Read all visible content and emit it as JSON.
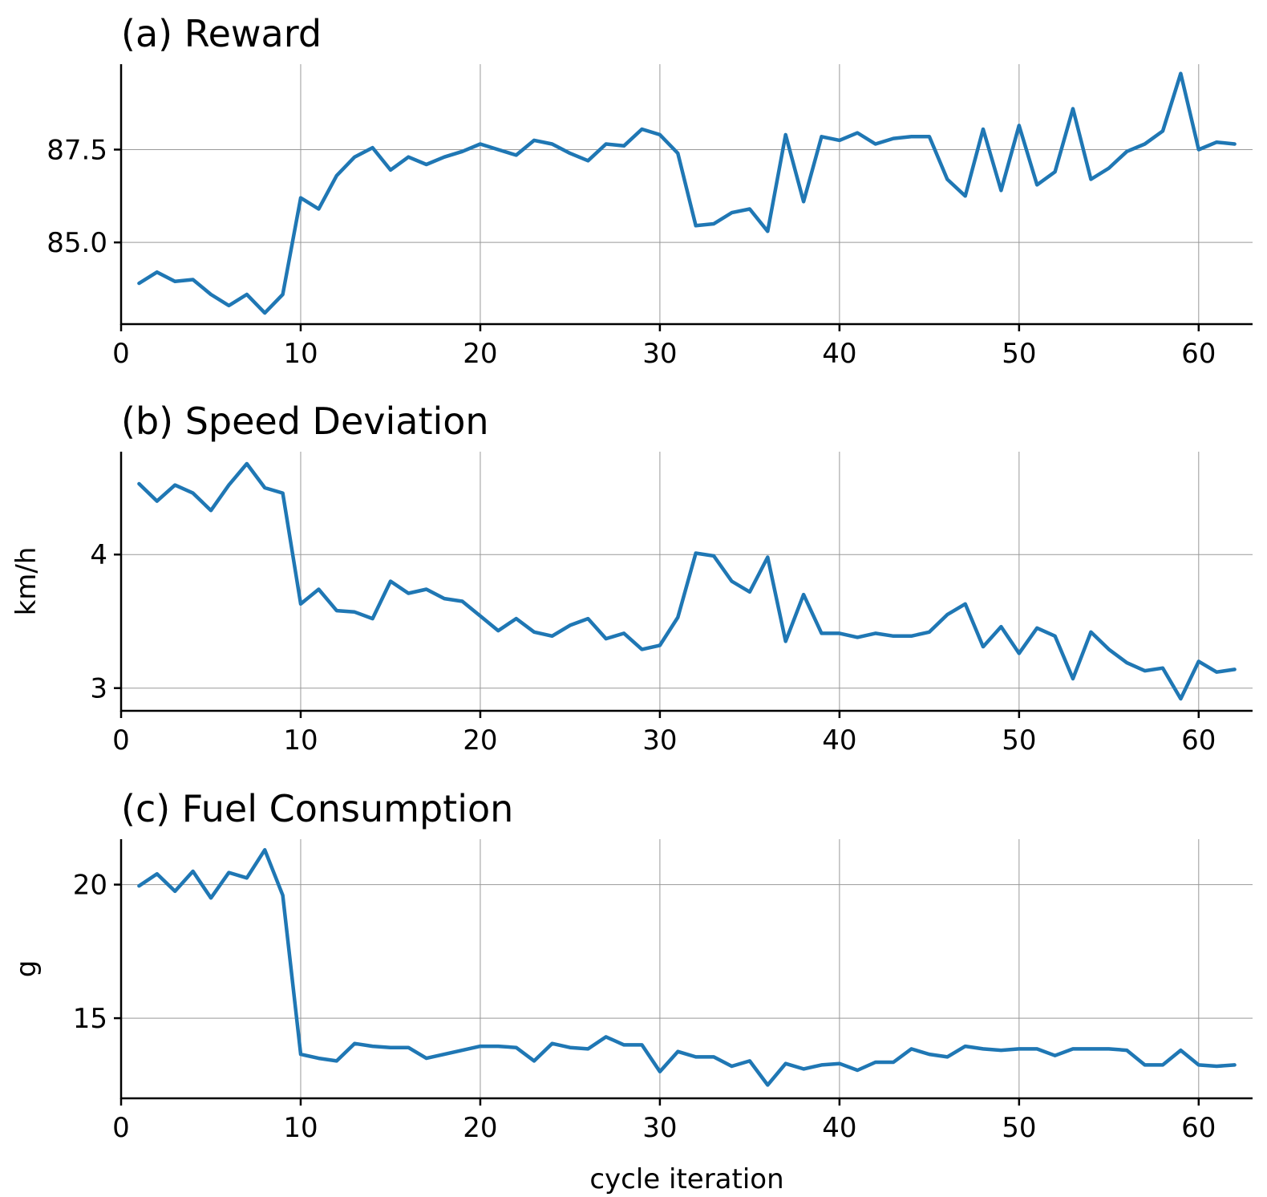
{
  "chart_data": [
    {
      "type": "line",
      "title": "(a) Reward",
      "xlabel": "",
      "ylabel": "",
      "xlim": [
        0,
        63
      ],
      "ylim": [
        82.8,
        89.8
      ],
      "xticks": [
        0,
        10,
        20,
        30,
        40,
        50,
        60
      ],
      "yticks": [
        85.0,
        87.5
      ],
      "ytick_labels": [
        "85.0",
        "87.5"
      ],
      "grid": true,
      "color": "#1f77b4",
      "x": [
        1,
        2,
        3,
        4,
        5,
        6,
        7,
        8,
        9,
        10,
        11,
        12,
        13,
        14,
        15,
        16,
        17,
        18,
        19,
        20,
        21,
        22,
        23,
        24,
        25,
        26,
        27,
        28,
        29,
        30,
        31,
        32,
        33,
        34,
        35,
        36,
        37,
        38,
        39,
        40,
        41,
        42,
        43,
        44,
        45,
        46,
        47,
        48,
        49,
        50,
        51,
        52,
        53,
        54,
        55,
        56,
        57,
        58,
        59,
        60,
        61,
        62
      ],
      "values": [
        83.9,
        84.2,
        83.95,
        84.0,
        83.6,
        83.3,
        83.6,
        83.1,
        83.6,
        86.2,
        85.9,
        86.8,
        87.3,
        87.55,
        86.95,
        87.3,
        87.1,
        87.3,
        87.45,
        87.65,
        87.5,
        87.35,
        87.75,
        87.65,
        87.4,
        87.2,
        87.65,
        87.6,
        88.05,
        87.9,
        87.4,
        85.45,
        85.5,
        85.8,
        85.9,
        85.3,
        87.9,
        86.1,
        87.85,
        87.75,
        87.95,
        87.65,
        87.8,
        87.85,
        87.85,
        86.7,
        86.25,
        88.05,
        86.4,
        88.15,
        86.55,
        86.9,
        88.6,
        86.7,
        87.0,
        87.45,
        87.65,
        88.0,
        89.55,
        87.5,
        87.7,
        87.65
      ]
    },
    {
      "type": "line",
      "title": "(b) Speed Deviation",
      "xlabel": "",
      "ylabel": "km/h",
      "xlim": [
        0,
        63
      ],
      "ylim": [
        2.83,
        4.77
      ],
      "xticks": [
        0,
        10,
        20,
        30,
        40,
        50,
        60
      ],
      "yticks": [
        3,
        4
      ],
      "ytick_labels": [
        "3",
        "4"
      ],
      "grid": true,
      "color": "#1f77b4",
      "x": [
        1,
        2,
        3,
        4,
        5,
        6,
        7,
        8,
        9,
        10,
        11,
        12,
        13,
        14,
        15,
        16,
        17,
        18,
        19,
        20,
        21,
        22,
        23,
        24,
        25,
        26,
        27,
        28,
        29,
        30,
        31,
        32,
        33,
        34,
        35,
        36,
        37,
        38,
        39,
        40,
        41,
        42,
        43,
        44,
        45,
        46,
        47,
        48,
        49,
        50,
        51,
        52,
        53,
        54,
        55,
        56,
        57,
        58,
        59,
        60,
        61,
        62
      ],
      "values": [
        4.53,
        4.4,
        4.52,
        4.46,
        4.33,
        4.52,
        4.68,
        4.5,
        4.46,
        3.63,
        3.74,
        3.58,
        3.57,
        3.52,
        3.8,
        3.71,
        3.74,
        3.67,
        3.65,
        3.54,
        3.43,
        3.52,
        3.42,
        3.39,
        3.47,
        3.52,
        3.37,
        3.41,
        3.29,
        3.32,
        3.53,
        4.01,
        3.99,
        3.8,
        3.72,
        3.98,
        3.35,
        3.7,
        3.41,
        3.41,
        3.38,
        3.41,
        3.39,
        3.39,
        3.42,
        3.55,
        3.63,
        3.31,
        3.46,
        3.26,
        3.45,
        3.39,
        3.07,
        3.42,
        3.29,
        3.19,
        3.13,
        3.15,
        2.92,
        3.2,
        3.12,
        3.14
      ]
    },
    {
      "type": "line",
      "title": "(c) Fuel Consumption",
      "xlabel": "cycle iteration",
      "ylabel": "g",
      "xlim": [
        0,
        63
      ],
      "ylim": [
        12.0,
        21.7
      ],
      "xticks": [
        0,
        10,
        20,
        30,
        40,
        50,
        60
      ],
      "yticks": [
        15,
        20
      ],
      "ytick_labels": [
        "15",
        "20"
      ],
      "grid": true,
      "color": "#1f77b4",
      "x": [
        1,
        2,
        3,
        4,
        5,
        6,
        7,
        8,
        9,
        10,
        11,
        12,
        13,
        14,
        15,
        16,
        17,
        18,
        19,
        20,
        21,
        22,
        23,
        24,
        25,
        26,
        27,
        28,
        29,
        30,
        31,
        32,
        33,
        34,
        35,
        36,
        37,
        38,
        39,
        40,
        41,
        42,
        43,
        44,
        45,
        46,
        47,
        48,
        49,
        50,
        51,
        52,
        53,
        54,
        55,
        56,
        57,
        58,
        59,
        60,
        61,
        62
      ],
      "values": [
        19.95,
        20.4,
        19.75,
        20.5,
        19.5,
        20.45,
        20.25,
        21.3,
        19.6,
        13.65,
        13.5,
        13.4,
        14.05,
        13.95,
        13.9,
        13.9,
        13.5,
        13.65,
        13.8,
        13.95,
        13.95,
        13.9,
        13.4,
        14.05,
        13.9,
        13.85,
        14.3,
        14.0,
        14.0,
        13.0,
        13.75,
        13.55,
        13.55,
        13.2,
        13.4,
        12.5,
        13.3,
        13.1,
        13.25,
        13.3,
        13.05,
        13.35,
        13.35,
        13.85,
        13.65,
        13.55,
        13.95,
        13.85,
        13.8,
        13.85,
        13.85,
        13.6,
        13.85,
        13.85,
        13.85,
        13.8,
        13.25,
        13.25,
        13.8,
        13.25,
        13.2,
        13.25
      ]
    }
  ]
}
